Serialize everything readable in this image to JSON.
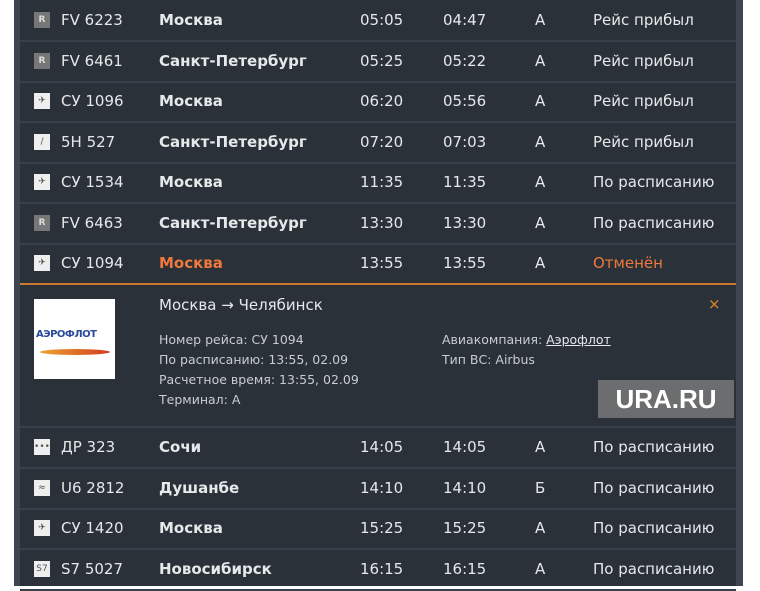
{
  "flights_before": [
    {
      "icon": "airline-r-icon",
      "flight": "FV 6223",
      "city": "Москва",
      "scheduled": "05:05",
      "estimated": "04:47",
      "terminal": "A",
      "status": "Рейс прибыл"
    },
    {
      "icon": "airline-r-icon",
      "flight": "FV 6461",
      "city": "Санкт-Петербург",
      "scheduled": "05:25",
      "estimated": "05:22",
      "terminal": "A",
      "status": "Рейс прибыл"
    },
    {
      "icon": "aeroflot-icon",
      "flight": "СУ 1096",
      "city": "Москва",
      "scheduled": "06:20",
      "estimated": "05:56",
      "terminal": "A",
      "status": "Рейс прибыл"
    },
    {
      "icon": "airline-5h-icon",
      "flight": "5H 527",
      "city": "Санкт-Петербург",
      "scheduled": "07:20",
      "estimated": "07:03",
      "terminal": "A",
      "status": "Рейс прибыл"
    },
    {
      "icon": "aeroflot-icon",
      "flight": "СУ 1534",
      "city": "Москва",
      "scheduled": "11:35",
      "estimated": "11:35",
      "terminal": "A",
      "status": "По расписанию"
    },
    {
      "icon": "airline-r-icon",
      "flight": "FV 6463",
      "city": "Санкт-Петербург",
      "scheduled": "13:30",
      "estimated": "13:30",
      "terminal": "A",
      "status": "По расписанию"
    },
    {
      "icon": "aeroflot-icon",
      "flight": "СУ 1094",
      "city": "Москва",
      "scheduled": "13:55",
      "estimated": "13:55",
      "terminal": "A",
      "status": "Отменён"
    }
  ],
  "detail": {
    "logo_text": "АЭРОФЛОТ",
    "route": "Москва → Челябинск",
    "flight_number": "Номер рейса: СУ 1094",
    "scheduled": "По расписанию: 13:55, 02.09",
    "estimated": "Расчетное время: 13:55, 02.09",
    "terminal": "Терминал: A",
    "airline_label": "Авиакомпания: ",
    "airline_link": "Аэрофлот",
    "aircraft": "Тип ВС: Airbus",
    "close": "×"
  },
  "flights_after": [
    {
      "icon": "airline-dp-icon",
      "flight": "ДР 323",
      "city": "Сочи",
      "scheduled": "14:05",
      "estimated": "14:05",
      "terminal": "A",
      "status": "По расписанию"
    },
    {
      "icon": "airline-u6-icon",
      "flight": "U6 2812",
      "city": "Душанбе",
      "scheduled": "14:10",
      "estimated": "14:10",
      "terminal": "Б",
      "status": "По расписанию"
    },
    {
      "icon": "aeroflot-icon",
      "flight": "СУ 1420",
      "city": "Москва",
      "scheduled": "15:25",
      "estimated": "15:25",
      "terminal": "A",
      "status": "По расписанию"
    },
    {
      "icon": "airline-s7-icon",
      "flight": "S7 5027",
      "city": "Новосибирск",
      "scheduled": "16:15",
      "estimated": "16:15",
      "terminal": "A",
      "status": "По расписанию"
    }
  ],
  "watermark": "URA.RU",
  "colors": {
    "board": "#2a3139",
    "accent": "#f0783c",
    "border": "#c9782f"
  }
}
